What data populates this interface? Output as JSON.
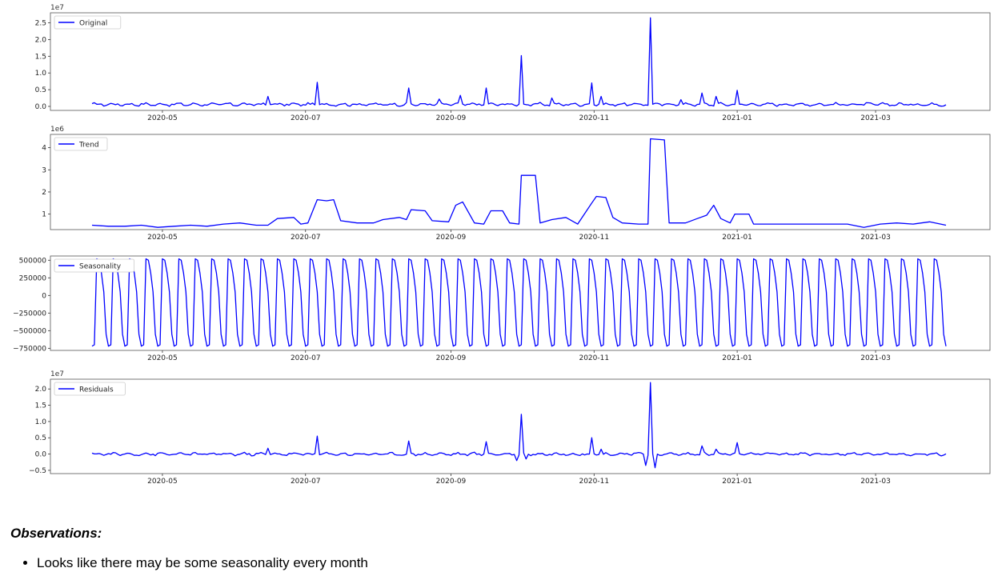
{
  "chart_data": [
    {
      "type": "line",
      "title": "",
      "scale_label": "1e7",
      "legend": "Original",
      "legend_placement": "top-left",
      "color": "#0000ff",
      "xlim": [
        "2020-04-01",
        "2021-03-31"
      ],
      "ylim": [
        -0.12,
        2.8
      ],
      "yticks": [
        "0.0",
        "0.5",
        "1.0",
        "1.5",
        "2.0",
        "2.5"
      ],
      "xticks": [
        "2020-05",
        "2020-07",
        "2020-09",
        "2020-11",
        "2021-01",
        "2021-03"
      ],
      "baseline": 0.06,
      "noise": 0.05,
      "period": 7,
      "peaks": [
        {
          "x": "2020-06-15",
          "y": 0.3
        },
        {
          "x": "2020-07-06",
          "y": 0.72
        },
        {
          "x": "2020-08-14",
          "y": 0.55
        },
        {
          "x": "2020-08-27",
          "y": 0.22
        },
        {
          "x": "2020-09-05",
          "y": 0.33
        },
        {
          "x": "2020-09-16",
          "y": 0.55
        },
        {
          "x": "2020-10-01",
          "y": 1.52
        },
        {
          "x": "2020-10-14",
          "y": 0.25
        },
        {
          "x": "2020-10-31",
          "y": 0.7
        },
        {
          "x": "2020-11-04",
          "y": 0.3
        },
        {
          "x": "2020-11-25",
          "y": 2.65
        },
        {
          "x": "2020-12-08",
          "y": 0.2
        },
        {
          "x": "2020-12-17",
          "y": 0.4
        },
        {
          "x": "2020-12-23",
          "y": 0.3
        },
        {
          "x": "2021-01-01",
          "y": 0.48
        }
      ]
    },
    {
      "type": "line",
      "title": "",
      "scale_label": "1e6",
      "legend": "Trend",
      "legend_placement": "top-left",
      "color": "#0000ff",
      "xlim": [
        "2020-04-01",
        "2021-03-31"
      ],
      "ylim": [
        0.3,
        4.6
      ],
      "yticks": [
        "1",
        "2",
        "3",
        "4"
      ],
      "xticks": [
        "2020-05",
        "2020-07",
        "2020-09",
        "2020-11",
        "2021-01",
        "2021-03"
      ],
      "points": [
        [
          "2020-04-01",
          0.5
        ],
        [
          "2020-04-08",
          0.45
        ],
        [
          "2020-04-15",
          0.45
        ],
        [
          "2020-04-22",
          0.5
        ],
        [
          "2020-04-29",
          0.4
        ],
        [
          "2020-05-06",
          0.45
        ],
        [
          "2020-05-13",
          0.5
        ],
        [
          "2020-05-20",
          0.45
        ],
        [
          "2020-05-27",
          0.55
        ],
        [
          "2020-06-03",
          0.6
        ],
        [
          "2020-06-10",
          0.5
        ],
        [
          "2020-06-15",
          0.5
        ],
        [
          "2020-06-19",
          0.8
        ],
        [
          "2020-06-26",
          0.85
        ],
        [
          "2020-06-29",
          0.55
        ],
        [
          "2020-07-02",
          0.6
        ],
        [
          "2020-07-06",
          1.65
        ],
        [
          "2020-07-10",
          1.6
        ],
        [
          "2020-07-13",
          1.65
        ],
        [
          "2020-07-16",
          0.7
        ],
        [
          "2020-07-23",
          0.6
        ],
        [
          "2020-07-30",
          0.6
        ],
        [
          "2020-08-03",
          0.75
        ],
        [
          "2020-08-10",
          0.85
        ],
        [
          "2020-08-13",
          0.75
        ],
        [
          "2020-08-15",
          1.2
        ],
        [
          "2020-08-21",
          1.15
        ],
        [
          "2020-08-24",
          0.7
        ],
        [
          "2020-08-31",
          0.65
        ],
        [
          "2020-09-03",
          1.4
        ],
        [
          "2020-09-06",
          1.55
        ],
        [
          "2020-09-11",
          0.6
        ],
        [
          "2020-09-15",
          0.55
        ],
        [
          "2020-09-18",
          1.15
        ],
        [
          "2020-09-23",
          1.15
        ],
        [
          "2020-09-26",
          0.6
        ],
        [
          "2020-09-30",
          0.55
        ],
        [
          "2020-10-01",
          2.75
        ],
        [
          "2020-10-07",
          2.75
        ],
        [
          "2020-10-09",
          0.6
        ],
        [
          "2020-10-14",
          0.75
        ],
        [
          "2020-10-20",
          0.85
        ],
        [
          "2020-10-25",
          0.55
        ],
        [
          "2020-10-31",
          1.5
        ],
        [
          "2020-11-02",
          1.8
        ],
        [
          "2020-11-06",
          1.75
        ],
        [
          "2020-11-09",
          0.85
        ],
        [
          "2020-11-13",
          0.6
        ],
        [
          "2020-11-20",
          0.55
        ],
        [
          "2020-11-24",
          0.55
        ],
        [
          "2020-11-25",
          4.4
        ],
        [
          "2020-12-01",
          4.35
        ],
        [
          "2020-12-03",
          0.6
        ],
        [
          "2020-12-10",
          0.6
        ],
        [
          "2020-12-15",
          0.8
        ],
        [
          "2020-12-19",
          0.95
        ],
        [
          "2020-12-22",
          1.4
        ],
        [
          "2020-12-25",
          0.8
        ],
        [
          "2020-12-29",
          0.6
        ],
        [
          "2020-12-31",
          1.0
        ],
        [
          "2021-01-06",
          1.0
        ],
        [
          "2021-01-08",
          0.55
        ],
        [
          "2021-01-20",
          0.55
        ],
        [
          "2021-02-03",
          0.55
        ],
        [
          "2021-02-17",
          0.55
        ],
        [
          "2021-02-24",
          0.4
        ],
        [
          "2021-03-03",
          0.55
        ],
        [
          "2021-03-10",
          0.6
        ],
        [
          "2021-03-17",
          0.55
        ],
        [
          "2021-03-24",
          0.65
        ],
        [
          "2021-03-31",
          0.5
        ]
      ]
    },
    {
      "type": "line",
      "title": "",
      "scale_label": "",
      "legend": "Seasonality",
      "legend_placement": "top-left",
      "color": "#0000ff",
      "xlim": [
        "2020-04-01",
        "2021-03-31"
      ],
      "ylim": [
        -780000,
        560000
      ],
      "yticks": [
        "500000",
        "250000",
        "0",
        "−250000",
        "−500000",
        "−750000"
      ],
      "xticks": [
        "2020-05",
        "2020-07",
        "2020-09",
        "2020-11",
        "2021-01",
        "2021-03"
      ],
      "period": 7,
      "pattern": [
        -720000,
        -700000,
        520000,
        500000,
        320000,
        50000,
        -550000
      ]
    },
    {
      "type": "line",
      "title": "",
      "scale_label": "1e7",
      "legend": "Residuals",
      "legend_placement": "top-left",
      "color": "#0000ff",
      "xlim": [
        "2020-04-01",
        "2021-03-31"
      ],
      "ylim": [
        -0.6,
        2.3
      ],
      "yticks": [
        "2.0",
        "1.5",
        "1.0",
        "0.5",
        "0.0",
        "−0.5"
      ],
      "xticks": [
        "2020-05",
        "2020-07",
        "2020-09",
        "2020-11",
        "2021-01",
        "2021-03"
      ],
      "baseline": 0.0,
      "noise": 0.05,
      "period": 7,
      "peaks": [
        {
          "x": "2020-06-15",
          "y": 0.18
        },
        {
          "x": "2020-07-06",
          "y": 0.55
        },
        {
          "x": "2020-08-14",
          "y": 0.4
        },
        {
          "x": "2020-09-16",
          "y": 0.38
        },
        {
          "x": "2020-09-29",
          "y": -0.2
        },
        {
          "x": "2020-10-01",
          "y": 1.22
        },
        {
          "x": "2020-10-03",
          "y": -0.15
        },
        {
          "x": "2020-10-31",
          "y": 0.5
        },
        {
          "x": "2020-11-04",
          "y": 0.15
        },
        {
          "x": "2020-11-23",
          "y": -0.35
        },
        {
          "x": "2020-11-25",
          "y": 2.2
        },
        {
          "x": "2020-11-27",
          "y": -0.42
        },
        {
          "x": "2020-12-17",
          "y": 0.25
        },
        {
          "x": "2020-12-23",
          "y": 0.15
        },
        {
          "x": "2021-01-01",
          "y": 0.35
        }
      ]
    }
  ],
  "observations": {
    "heading": "Observations:",
    "bullets": [
      "Looks like there may be some seasonality every month"
    ]
  }
}
